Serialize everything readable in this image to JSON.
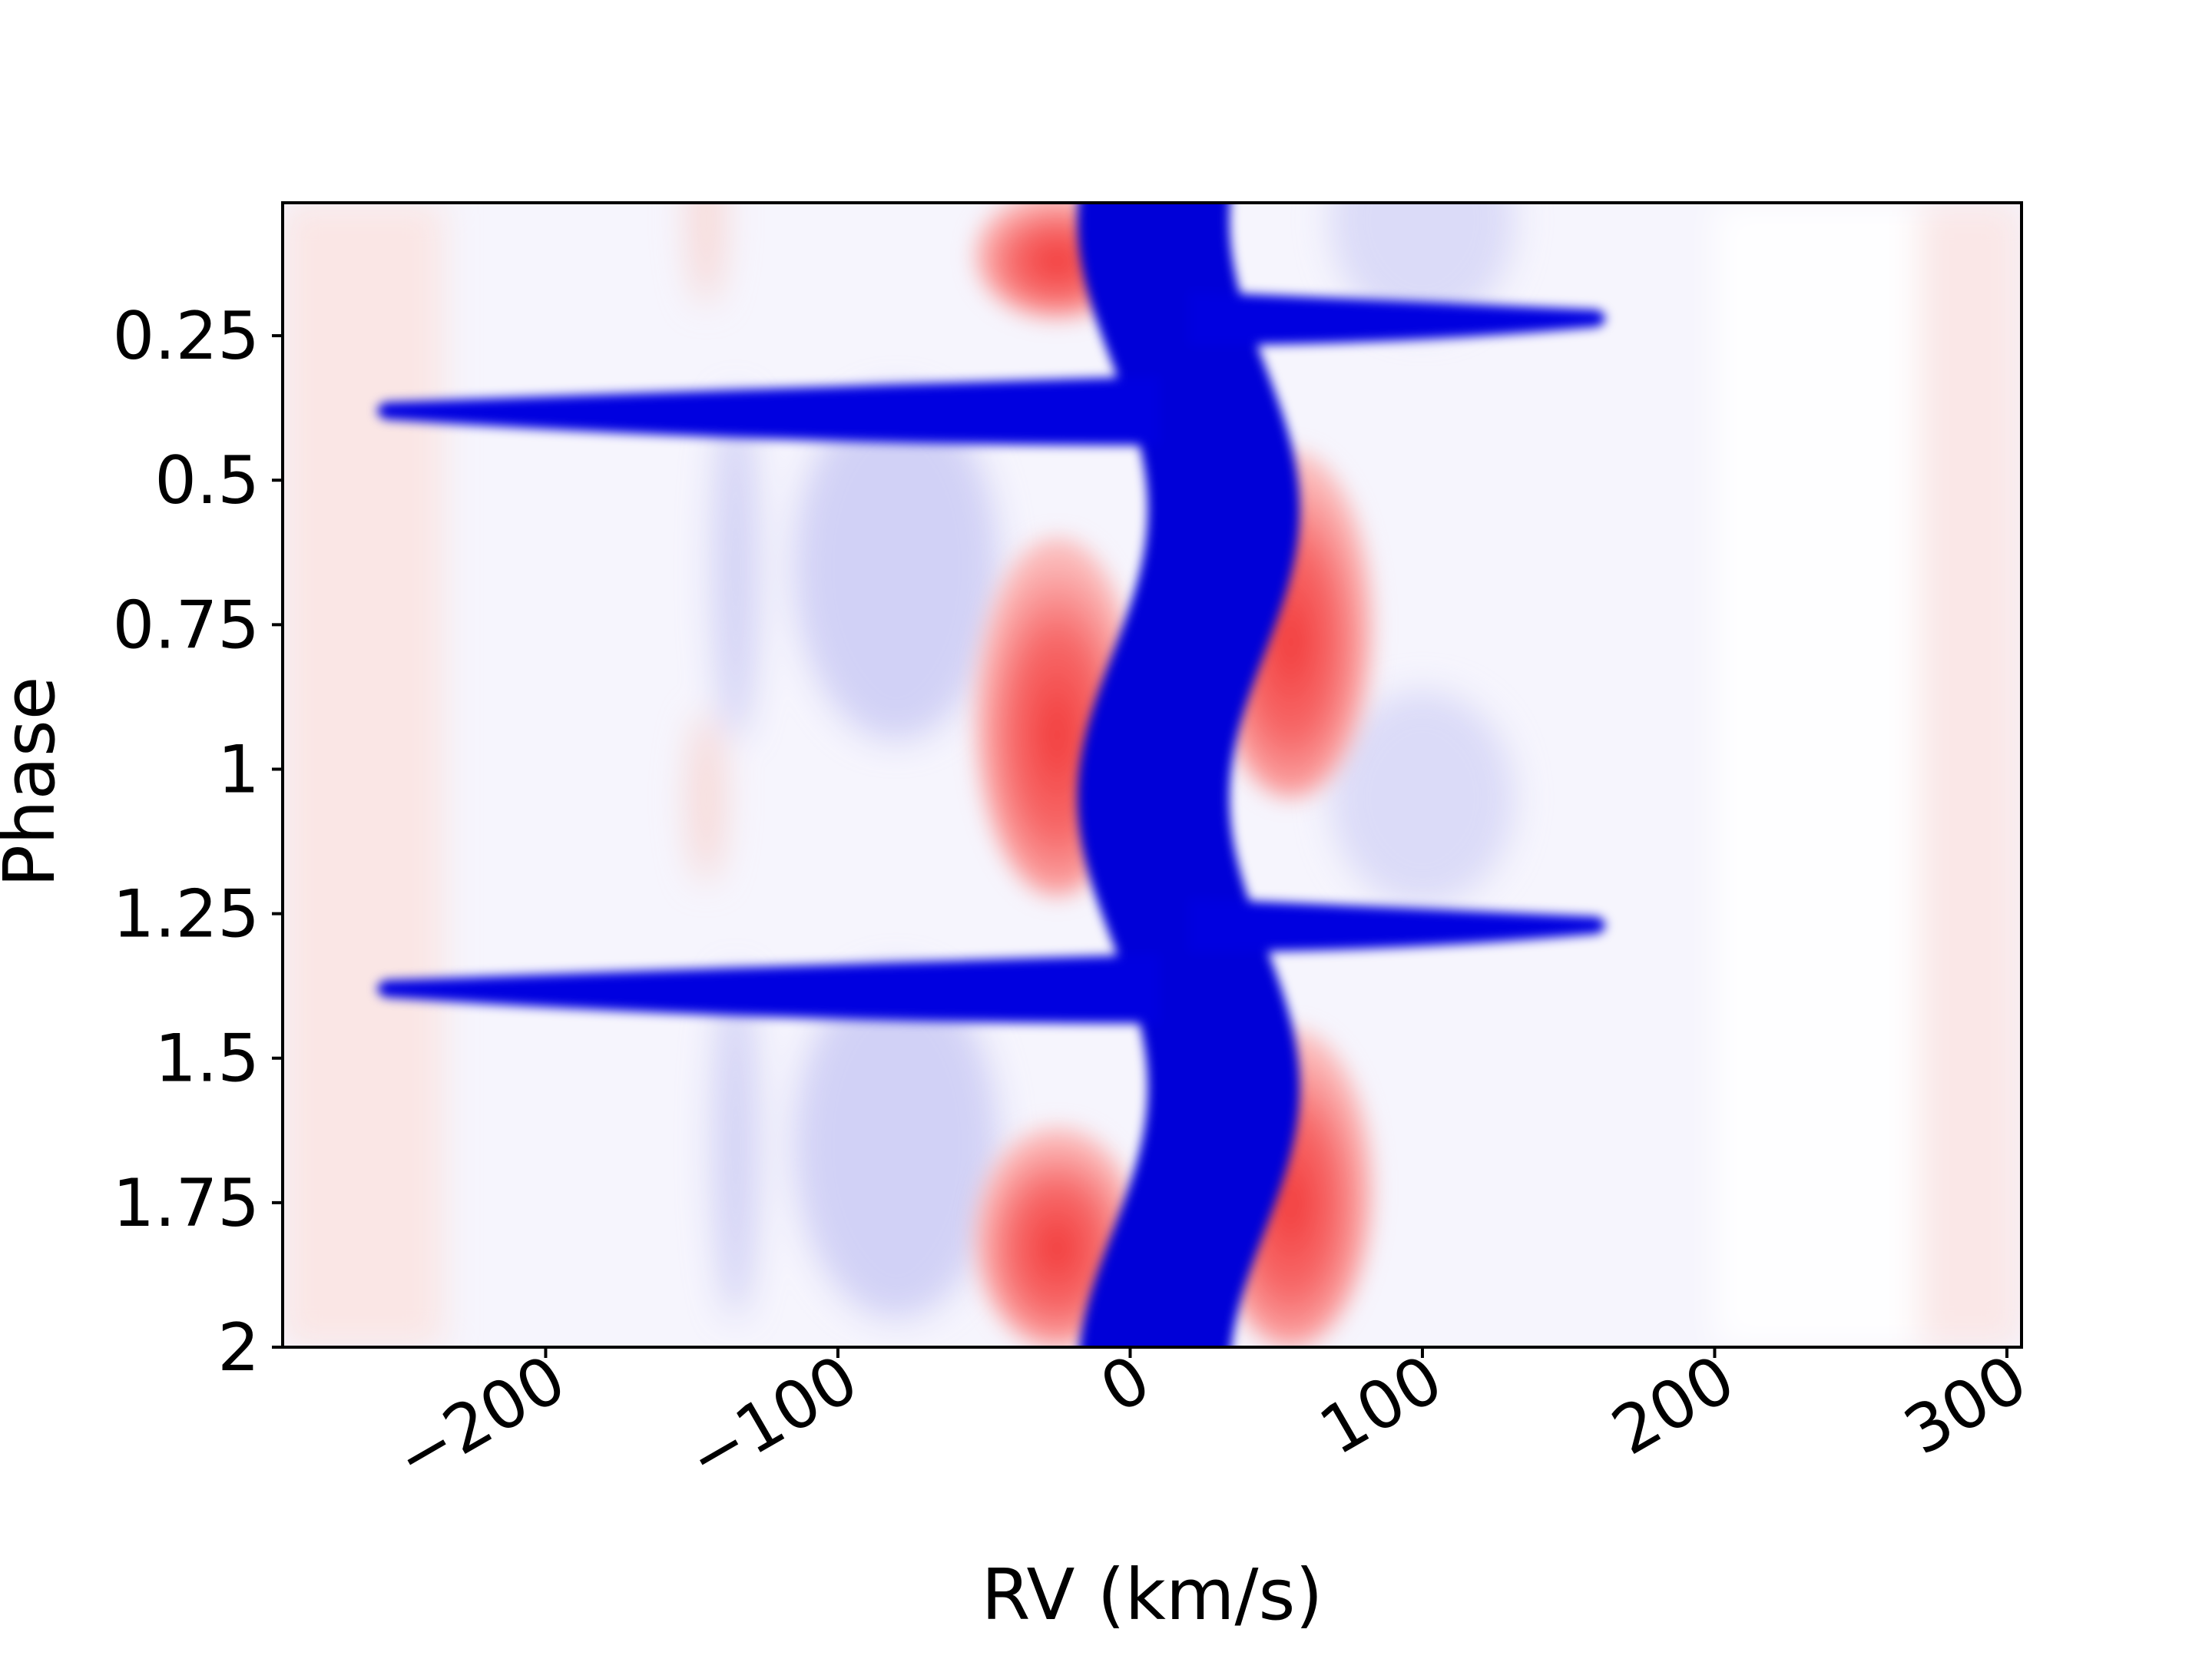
{
  "chart_data": {
    "type": "heatmap",
    "title": "",
    "xlabel": "RV (km/s)",
    "ylabel": "Phase",
    "xlim": [
      -290,
      305
    ],
    "ylim": [
      0.02,
      2.0
    ],
    "y_inverted": true,
    "grid": false,
    "legend": "none",
    "colormap": "bwr (blue = negative, white = zero, red = positive)",
    "x_ticks": [
      -200,
      -100,
      0,
      100,
      200,
      300
    ],
    "x_tick_labels": [
      "−200",
      "−100",
      "0",
      "100",
      "200",
      "300"
    ],
    "y_ticks": [
      0.25,
      0.5,
      0.75,
      1,
      1.25,
      1.5,
      1.75,
      2
    ],
    "y_tick_labels": [
      "0.25",
      "0.5",
      "0.75",
      "1",
      "1.25",
      "1.5",
      "1.75",
      "2"
    ],
    "features": [
      {
        "label": "central absorption track",
        "kind": "blue",
        "rv_center": 20,
        "rv_amplitude": 12,
        "period_phase": 1
      },
      {
        "label": "blue excursion",
        "kind": "blue",
        "phase": 0.38,
        "rv_range": [
          -255,
          10
        ]
      },
      {
        "label": "red-side excursion",
        "kind": "blue",
        "phase": 0.22,
        "rv_range": [
          20,
          160
        ]
      },
      {
        "label": "blue excursion",
        "kind": "blue",
        "phase": 1.38,
        "rv_range": [
          -255,
          10
        ]
      },
      {
        "label": "red-side excursion",
        "kind": "blue",
        "phase": 1.27,
        "rv_range": [
          20,
          160
        ]
      },
      {
        "label": "emission lobe",
        "kind": "red",
        "rv": -25,
        "phase_range": [
          0.0,
          0.22
        ]
      },
      {
        "label": "emission lobe",
        "kind": "red",
        "rv": 55,
        "phase_range": [
          0.45,
          1.05
        ]
      },
      {
        "label": "emission lobe",
        "kind": "red",
        "rv": -25,
        "phase_range": [
          0.6,
          1.22
        ]
      },
      {
        "label": "emission lobe",
        "kind": "red",
        "rv": 55,
        "phase_range": [
          1.45,
          2.0
        ]
      },
      {
        "label": "emission lobe",
        "kind": "red",
        "rv": -25,
        "phase_range": [
          1.62,
          2.0
        ]
      }
    ]
  }
}
